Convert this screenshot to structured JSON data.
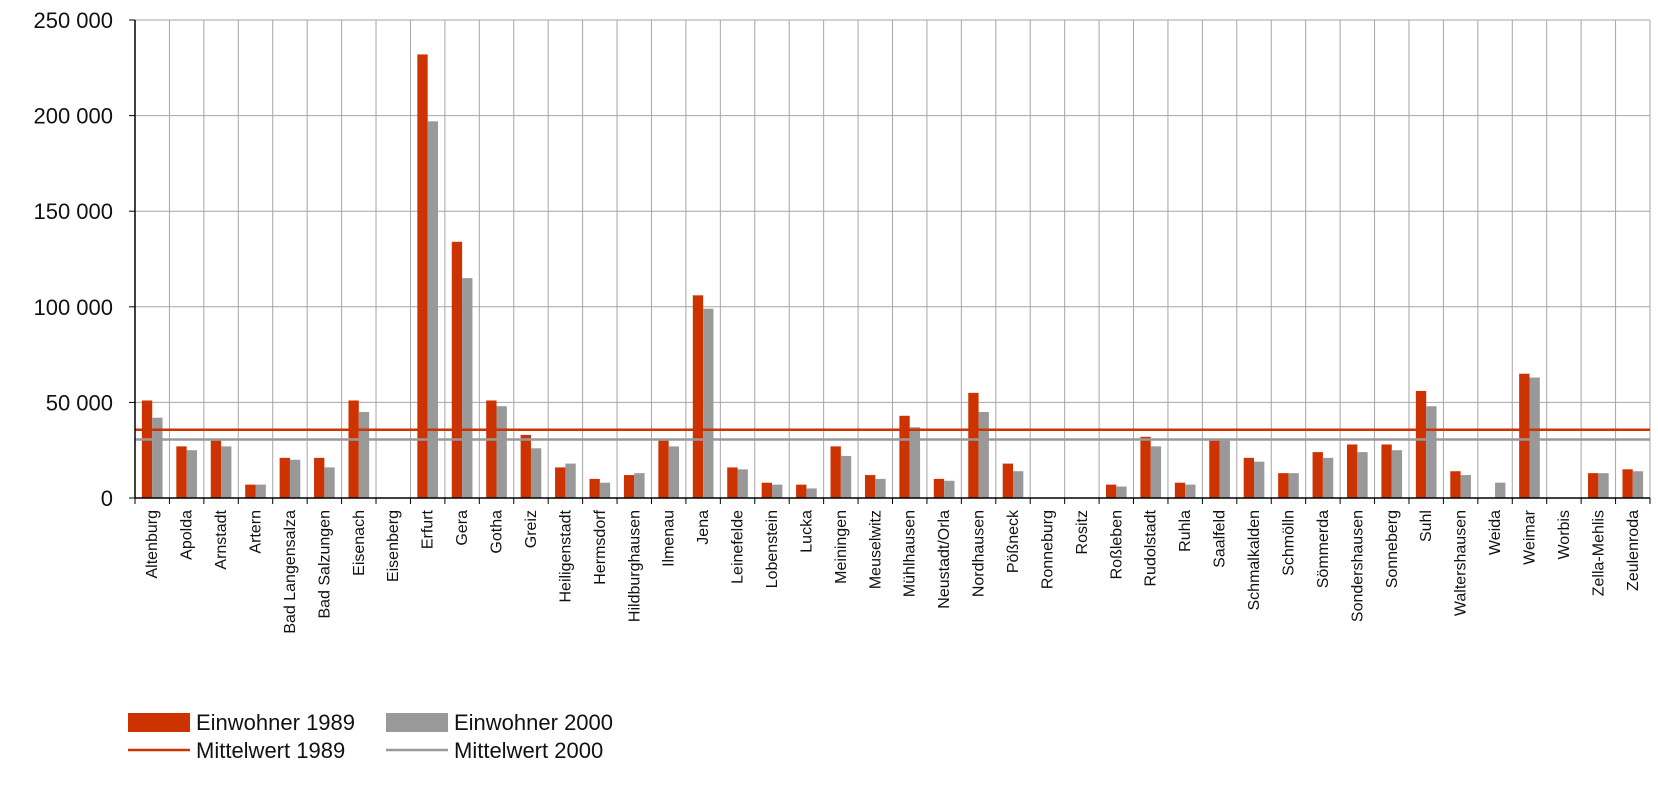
{
  "chart_data": {
    "type": "bar",
    "title": "",
    "xlabel": "",
    "ylabel": "",
    "ylim": [
      0,
      250000
    ],
    "yticks": [
      0,
      50000,
      100000,
      150000,
      200000,
      250000
    ],
    "ytick_labels": [
      "0",
      "50 000",
      "100 000",
      "150 000",
      "200 000",
      "250 000"
    ],
    "grid": true,
    "legend_position": "bottom-left",
    "categories": [
      "Altenburg",
      "Apolda",
      "Arnstadt",
      "Artern",
      "Bad Langensalza",
      "Bad Salzungen",
      "Eisenach",
      "Eisenberg",
      "Erfurt",
      "Gera",
      "Gotha",
      "Greiz",
      "Heiligenstadt",
      "Hermsdorf",
      "Hildburghausen",
      "Ilmenau",
      "Jena",
      "Leinefelde",
      "Lobenstein",
      "Lucka",
      "Meiningen",
      "Meuselwitz",
      "Mühlhausen",
      "Neustadt/Orla",
      "Nordhausen",
      "Pößneck",
      "Ronneburg",
      "Rositz",
      "Roßleben",
      "Rudolstadt",
      "Ruhla",
      "Saalfeld",
      "Schmalkalden",
      "Schmölln",
      "Sömmerda",
      "Sondershausen",
      "Sonneberg",
      "Suhl",
      "Waltershausen",
      "Weida",
      "Weimar",
      "Worbis",
      "Zella-Mehlis",
      "Zeulenroda"
    ],
    "series": [
      {
        "name": "Einwohner 1989",
        "color": "#cc3300",
        "values": [
          51000,
          27000,
          30000,
          7000,
          21000,
          21000,
          51000,
          0,
          232000,
          134000,
          51000,
          33000,
          16000,
          10000,
          12000,
          30000,
          106000,
          16000,
          8000,
          7000,
          27000,
          12000,
          43000,
          10000,
          55000,
          18000,
          0,
          0,
          7000,
          32000,
          8000,
          30000,
          21000,
          13000,
          24000,
          28000,
          28000,
          56000,
          14000,
          0,
          65000,
          0,
          13000,
          15000
        ]
      },
      {
        "name": "Einwohner 2000",
        "color": "#999999",
        "values": [
          42000,
          25000,
          27000,
          7000,
          20000,
          16000,
          45000,
          0,
          197000,
          115000,
          48000,
          26000,
          18000,
          8000,
          13000,
          27000,
          99000,
          15000,
          7000,
          5000,
          22000,
          10000,
          37000,
          9000,
          45000,
          14000,
          0,
          0,
          6000,
          27000,
          7000,
          30000,
          19000,
          13000,
          21000,
          24000,
          25000,
          48000,
          12000,
          8000,
          63000,
          0,
          13000,
          14000
        ]
      }
    ],
    "lines": [
      {
        "name": "Mittelwert 1989",
        "color": "#cc3300",
        "value": 35700
      },
      {
        "name": "Mittelwert 2000",
        "color": "#999999",
        "value": 30600
      }
    ]
  }
}
